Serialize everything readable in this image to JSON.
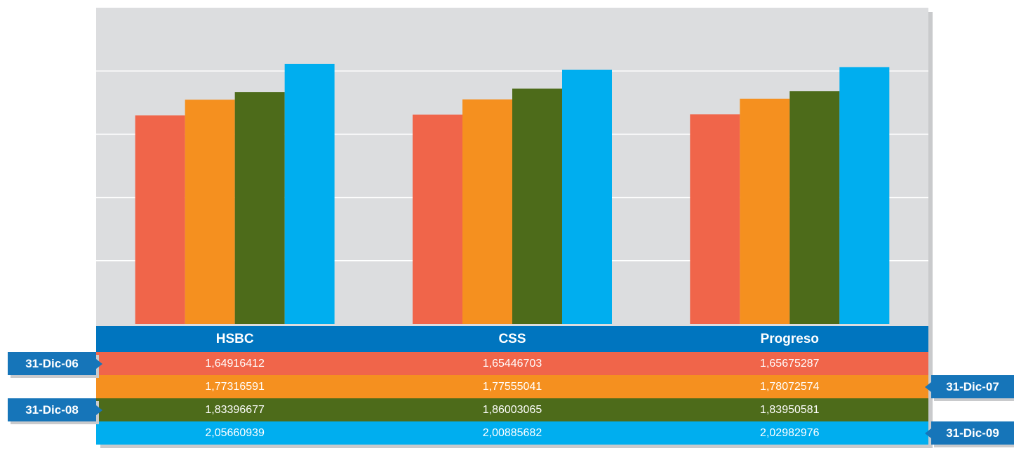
{
  "chart_data": {
    "type": "bar",
    "categories": [
      "HSBC",
      "CSS",
      "Progreso"
    ],
    "series": [
      {
        "name": "31-Dic-06",
        "color": "#f0654a",
        "values": [
          1.64916412,
          1.65446703,
          1.65675287
        ],
        "labels": [
          "1,64916412",
          "1,65446703",
          "1,65675287"
        ]
      },
      {
        "name": "31-Dic-07",
        "color": "#f5901f",
        "values": [
          1.77316591,
          1.77555041,
          1.78072574
        ],
        "labels": [
          "1,77316591",
          "1,77555041",
          "1,78072574"
        ]
      },
      {
        "name": "31-Dic-08",
        "color": "#4d6b1a",
        "values": [
          1.83396677,
          1.86003065,
          1.83950581
        ],
        "labels": [
          "1,83396677",
          "1,86003065",
          "1,83950581"
        ]
      },
      {
        "name": "31-Dic-09",
        "color": "#00aeef",
        "values": [
          2.05660939,
          2.00885682,
          2.02982976
        ],
        "labels": [
          "2,05660939",
          "2,00885682",
          "2,02982976"
        ]
      }
    ],
    "ylim": [
      0,
      2.5
    ],
    "grid": true,
    "header_color": "#0075bf"
  }
}
